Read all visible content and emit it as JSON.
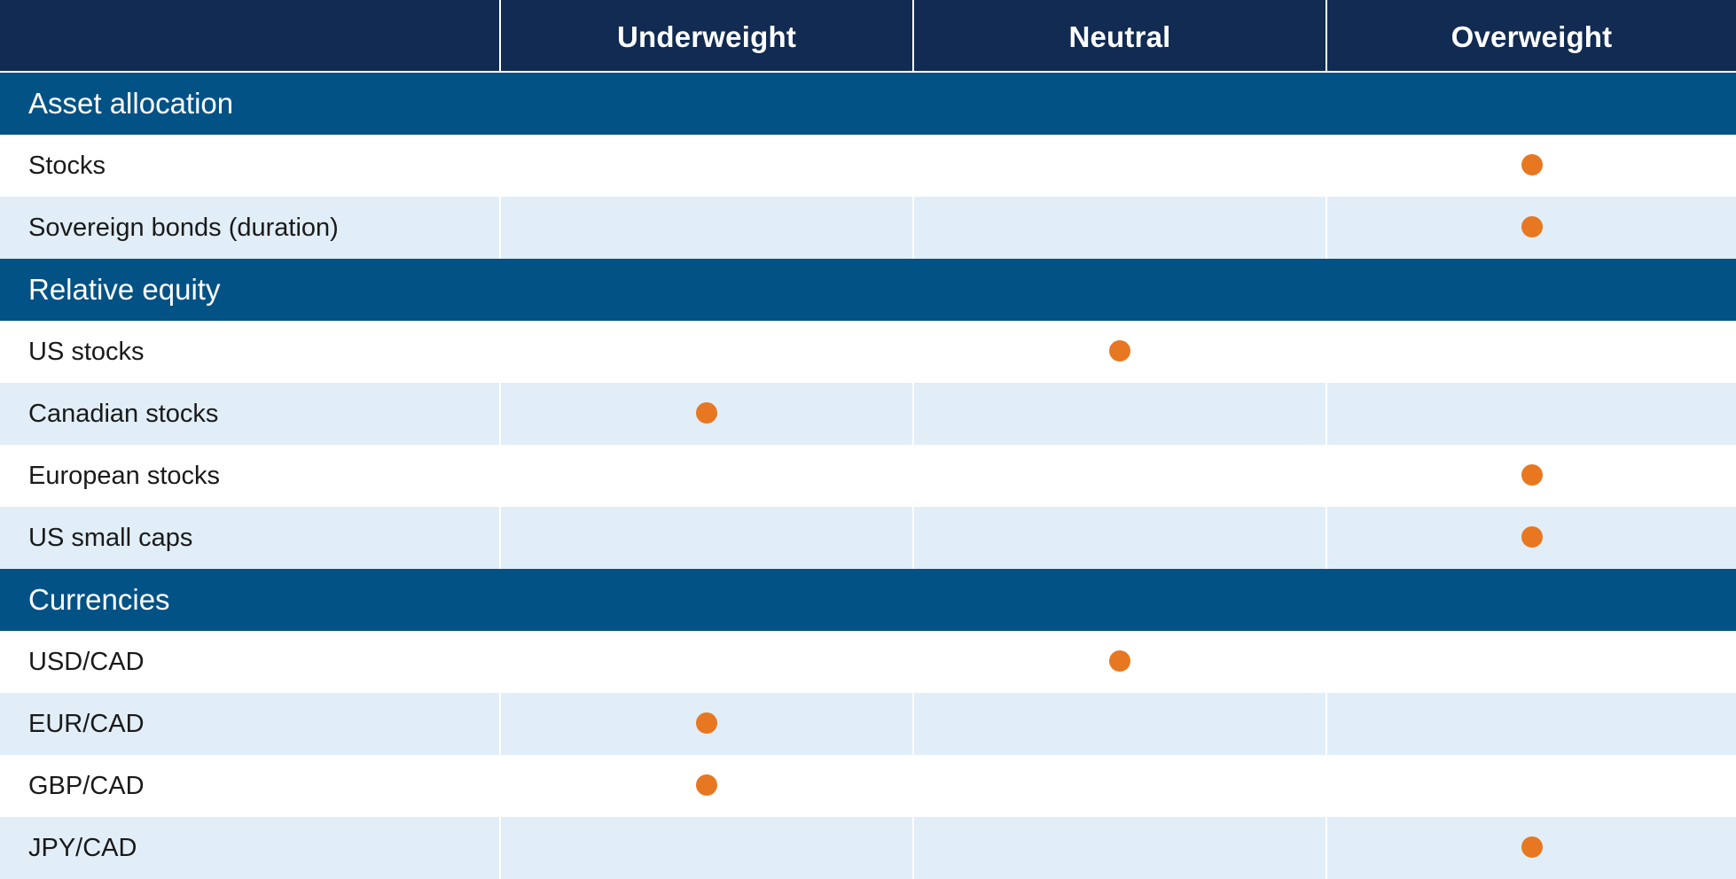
{
  "colors": {
    "header_bg": "#112b52",
    "section_bg": "#035286",
    "row_shade": "#e1eef8",
    "row_white": "#ffffff",
    "marker": "#e87722"
  },
  "chart_data": {
    "type": "table",
    "columns": [
      "",
      "Underweight",
      "Neutral",
      "Overweight"
    ],
    "sections": [
      {
        "title": "Asset allocation",
        "rows": [
          {
            "label": "Stocks",
            "position": "Overweight"
          },
          {
            "label": "Sovereign bonds (duration)",
            "position": "Overweight"
          }
        ]
      },
      {
        "title": "Relative equity",
        "rows": [
          {
            "label": "US stocks",
            "position": "Neutral"
          },
          {
            "label": "Canadian stocks",
            "position": "Underweight"
          },
          {
            "label": "European stocks",
            "position": "Overweight"
          },
          {
            "label": "US small caps",
            "position": "Overweight"
          }
        ]
      },
      {
        "title": "Currencies",
        "rows": [
          {
            "label": "USD/CAD",
            "position": "Neutral"
          },
          {
            "label": "EUR/CAD",
            "position": "Underweight"
          },
          {
            "label": "GBP/CAD",
            "position": "Underweight"
          },
          {
            "label": "JPY/CAD",
            "position": "Overweight"
          }
        ]
      }
    ]
  }
}
